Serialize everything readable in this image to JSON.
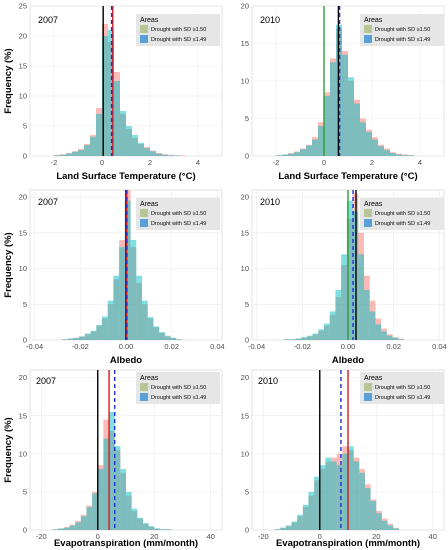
{
  "colors": {
    "greater": "#f8766d",
    "less": "#00bfc4",
    "overlap": "#7cae00",
    "legend_greater_swatch": "#b8c49a",
    "legend_less_swatch": "#5a9fd6",
    "vline_solid_black": "#000000",
    "vline_solid_green": "#2e9e3a",
    "vline_solid_red": "#d7191c",
    "vline_dashed_blue": "#1f2fd6"
  },
  "legend": {
    "title": "Areas",
    "items": [
      "Drought with SD ≥1.50",
      "Drought with SD ≤1.49"
    ]
  },
  "chart_data": [
    {
      "type": "bar",
      "panel_label": "2007",
      "xlabel": "Land Surface Temperature (°C)",
      "ylabel": "Frequency (%)",
      "xlim": [
        -3,
        5
      ],
      "ylim": [
        0,
        25
      ],
      "xticks": [
        -2,
        0,
        2,
        4
      ],
      "yticks": [
        0,
        5,
        10,
        15,
        20,
        25
      ],
      "bin_starts": [
        -2,
        -1.75,
        -1.5,
        -1.25,
        -1,
        -0.75,
        -0.5,
        -0.25,
        0,
        0.25,
        0.5,
        0.75,
        1,
        1.25,
        1.5,
        1.75,
        2,
        2.25,
        2.5,
        2.75,
        3,
        3.25,
        3.5
      ],
      "bin_width": 0.25,
      "series": [
        {
          "name": "Drought with SD ≥1.50",
          "values": [
            0.2,
            0.3,
            0.5,
            0.8,
            1.2,
            2,
            3.5,
            8,
            22,
            19,
            14,
            7,
            4.5,
            3,
            2,
            1.5,
            0.9,
            0.5,
            0.3,
            0.2,
            0.1,
            0.1,
            0
          ]
        },
        {
          "name": "Drought with SD ≤1.49",
          "values": [
            0.1,
            0.2,
            0.4,
            0.7,
            1,
            1.8,
            3.2,
            7,
            20,
            21,
            12.5,
            7.5,
            5,
            3.5,
            2.2,
            1.3,
            0.8,
            0.4,
            0.2,
            0.1,
            0.1,
            0,
            0
          ]
        }
      ],
      "vlines": [
        {
          "x": 0.05,
          "style": "solid",
          "color": "#000000"
        },
        {
          "x": 0.45,
          "style": "solid",
          "color": "#d7191c"
        },
        {
          "x": 0.4,
          "style": "dashed",
          "color": "#1f2fd6"
        }
      ]
    },
    {
      "type": "bar",
      "panel_label": "2010",
      "xlabel": "Land Surface Temperature (°C)",
      "ylabel": "",
      "xlim": [
        -3,
        5
      ],
      "ylim": [
        0,
        20
      ],
      "xticks": [
        -2,
        0,
        2,
        4
      ],
      "yticks": [
        0,
        5,
        10,
        15,
        20
      ],
      "bin_starts": [
        -2,
        -1.75,
        -1.5,
        -1.25,
        -1,
        -0.75,
        -0.5,
        -0.25,
        0,
        0.25,
        0.5,
        0.75,
        1,
        1.25,
        1.5,
        1.75,
        2,
        2.25,
        2.5,
        2.75,
        3,
        3.25,
        3.5
      ],
      "bin_width": 0.25,
      "series": [
        {
          "name": "Drought with SD ≥1.50",
          "values": [
            0.1,
            0.2,
            0.4,
            0.6,
            1,
            1.5,
            2.5,
            4.5,
            8.5,
            13,
            17,
            14,
            10,
            7.5,
            5,
            3.5,
            2.5,
            1.5,
            1,
            0.5,
            0.3,
            0.2,
            0.1
          ]
        },
        {
          "name": "Drought with SD ≤1.49",
          "values": [
            0.1,
            0.2,
            0.3,
            0.5,
            0.9,
            1.4,
            2.2,
            4,
            8,
            12.5,
            17.5,
            13.5,
            10.5,
            7,
            4.5,
            3.2,
            2.2,
            1.3,
            0.8,
            0.4,
            0.2,
            0.1,
            0.1
          ]
        }
      ],
      "vlines": [
        {
          "x": 0,
          "style": "solid",
          "color": "#2e9e3a"
        },
        {
          "x": 0.6,
          "style": "solid",
          "color": "#000000"
        },
        {
          "x": 0.65,
          "style": "dashed",
          "color": "#1f2fd6"
        }
      ]
    },
    {
      "type": "bar",
      "panel_label": "2007",
      "xlabel": "Albedo",
      "ylabel": "Frequency (%)",
      "xlim": [
        -0.042,
        0.042
      ],
      "ylim": [
        0,
        21
      ],
      "xticks": [
        -0.04,
        -0.02,
        0,
        0.02,
        0.04
      ],
      "xtick_labels": [
        "-0.04",
        "-0.02",
        "0.00",
        "0.02",
        "0.04"
      ],
      "yticks": [
        0,
        5,
        10,
        15,
        20
      ],
      "bin_starts": [
        -0.028,
        -0.0255,
        -0.023,
        -0.0205,
        -0.018,
        -0.0155,
        -0.013,
        -0.0105,
        -0.008,
        -0.0055,
        -0.003,
        -0.0005,
        0.002,
        0.0045,
        0.007,
        0.0095,
        0.012,
        0.0145,
        0.017,
        0.0195,
        0.022
      ],
      "bin_width": 0.0025,
      "series": [
        {
          "name": "Drought with SD ≥1.50",
          "values": [
            0.1,
            0.2,
            0.3,
            0.5,
            0.8,
            1.2,
            2,
            3,
            5,
            8.5,
            14,
            21,
            13,
            8,
            5,
            3,
            1.8,
            1,
            0.5,
            0.3,
            0.1
          ]
        },
        {
          "name": "Drought with SD ≤1.49",
          "values": [
            0.1,
            0.2,
            0.3,
            0.5,
            0.9,
            1.3,
            2.1,
            3.3,
            5.5,
            9,
            13,
            19.5,
            14,
            9,
            5.5,
            3.2,
            1.9,
            1.1,
            0.6,
            0.3,
            0.1
          ]
        }
      ],
      "vlines": [
        {
          "x": 0,
          "style": "solid",
          "color": "#000000"
        },
        {
          "x": 0.0003,
          "style": "solid",
          "color": "#d7191c"
        },
        {
          "x": 0.0004,
          "style": "dashed",
          "color": "#1f2fd6"
        }
      ]
    },
    {
      "type": "bar",
      "panel_label": "2010",
      "xlabel": "Albedo",
      "ylabel": "",
      "xlim": [
        -0.042,
        0.042
      ],
      "ylim": [
        0,
        21
      ],
      "xticks": [
        -0.04,
        -0.02,
        0,
        0.02,
        0.04
      ],
      "xtick_labels": [
        "-0.04",
        "-0.02",
        "0.00",
        "0.02",
        "0.04"
      ],
      "yticks": [
        0,
        5,
        10,
        15,
        20
      ],
      "bin_starts": [
        -0.028,
        -0.0255,
        -0.023,
        -0.0205,
        -0.018,
        -0.0155,
        -0.013,
        -0.0105,
        -0.008,
        -0.0055,
        -0.003,
        -0.0005,
        0.002,
        0.0045,
        0.007,
        0.0095,
        0.012,
        0.0145,
        0.017,
        0.0195,
        0.022
      ],
      "bin_width": 0.0025,
      "series": [
        {
          "name": "Drought with SD ≥1.50",
          "values": [
            0.1,
            0.1,
            0.2,
            0.3,
            0.5,
            0.8,
            1.3,
            2,
            3.5,
            6,
            10.5,
            17,
            20.5,
            15,
            9,
            5.5,
            3,
            1.6,
            0.8,
            0.4,
            0.2
          ]
        },
        {
          "name": "Drought with SD ≤1.49",
          "values": [
            0.1,
            0.1,
            0.2,
            0.4,
            0.6,
            0.9,
            1.5,
            2.3,
            4,
            7,
            12,
            19.5,
            18,
            12,
            7,
            4,
            2.2,
            1.2,
            0.6,
            0.3,
            0.1
          ]
        }
      ],
      "vlines": [
        {
          "x": 0,
          "style": "solid",
          "color": "#2e9e3a"
        },
        {
          "x": 0.0035,
          "style": "solid",
          "color": "#000000"
        },
        {
          "x": 0.0022,
          "style": "dashed",
          "color": "#1f2fd6"
        }
      ]
    },
    {
      "type": "bar",
      "panel_label": "2007",
      "xlabel": "Evapotranspiration (mm/month)",
      "ylabel": "Frequency (%)",
      "xlim": [
        -24,
        44
      ],
      "ylim": [
        0,
        21
      ],
      "xticks": [
        -20,
        0,
        20,
        40
      ],
      "yticks": [
        0,
        5,
        10,
        15,
        20
      ],
      "bin_starts": [
        -16,
        -14,
        -12,
        -10,
        -8,
        -6,
        -4,
        -2,
        0,
        2,
        4,
        6,
        8,
        10,
        12,
        14,
        16,
        18,
        20,
        22,
        24,
        26
      ],
      "bin_width": 2,
      "series": [
        {
          "name": "Drought with SD ≥1.50",
          "values": [
            0.1,
            0.2,
            0.4,
            0.7,
            1.2,
            2,
            3.2,
            5,
            8.5,
            14.5,
            13,
            10.5,
            7.5,
            4.5,
            2.5,
            1.5,
            0.8,
            0.4,
            0.2,
            0.1,
            0.1,
            0
          ]
        },
        {
          "name": "Drought with SD ≤1.49",
          "values": [
            0.1,
            0.2,
            0.3,
            0.6,
            1,
            1.8,
            3,
            4.8,
            8,
            12,
            15.5,
            11,
            8,
            5,
            2.8,
            1.6,
            0.9,
            0.5,
            0.2,
            0.1,
            0.1,
            0
          ]
        }
      ],
      "vlines": [
        {
          "x": 0,
          "style": "solid",
          "color": "#000000"
        },
        {
          "x": 4,
          "style": "solid",
          "color": "#d7191c"
        },
        {
          "x": 6,
          "style": "dashed",
          "color": "#1f2fd6"
        }
      ]
    },
    {
      "type": "bar",
      "panel_label": "2010",
      "xlabel": "Evapotranspiration (mm/month)",
      "ylabel": "",
      "xlim": [
        -24,
        44
      ],
      "ylim": [
        0,
        21
      ],
      "xticks": [
        -20,
        0,
        20,
        40
      ],
      "yticks": [
        0,
        5,
        10,
        15,
        20
      ],
      "bin_starts": [
        -16,
        -14,
        -12,
        -10,
        -8,
        -6,
        -4,
        -2,
        0,
        2,
        4,
        6,
        8,
        10,
        12,
        14,
        16,
        18,
        20,
        22,
        24,
        26
      ],
      "bin_width": 2,
      "series": [
        {
          "name": "Drought with SD ≥1.50",
          "values": [
            0.1,
            0.3,
            0.5,
            1,
            1.8,
            3,
            4.5,
            6.5,
            8,
            9,
            9.5,
            10,
            11,
            10.5,
            9.5,
            8,
            6,
            4,
            2.5,
            1.5,
            0.8,
            0.3
          ]
        },
        {
          "name": "Drought with SD ≤1.49",
          "values": [
            0.1,
            0.3,
            0.6,
            1.1,
            2,
            3.3,
            5,
            7,
            8.5,
            9.5,
            9,
            8.5,
            10,
            11,
            9,
            7.5,
            5.5,
            3.8,
            2.2,
            1.2,
            0.6,
            0.2
          ]
        }
      ],
      "vlines": [
        {
          "x": 0,
          "style": "solid",
          "color": "#000000"
        },
        {
          "x": 10,
          "style": "solid",
          "color": "#d7191c"
        },
        {
          "x": 7.5,
          "style": "dashed",
          "color": "#1f2fd6"
        }
      ]
    }
  ]
}
